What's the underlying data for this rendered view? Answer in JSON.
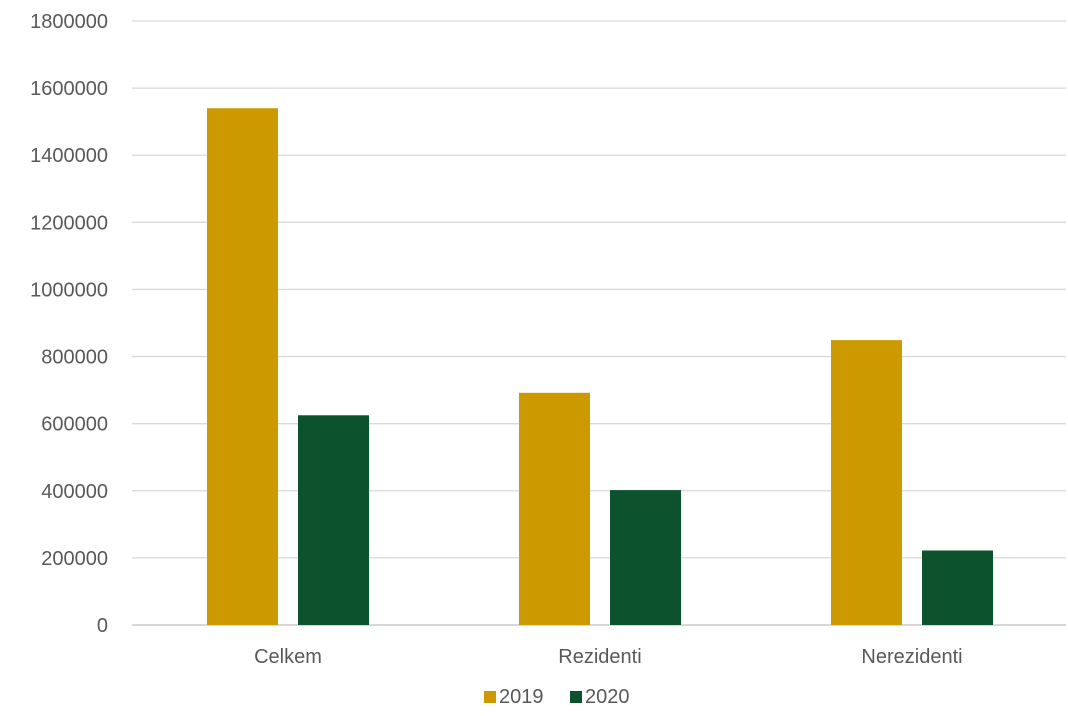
{
  "chart_data": {
    "type": "bar",
    "categories": [
      "Celkem",
      "Rezidenti",
      "Nerezidenti"
    ],
    "series": [
      {
        "name": "2019",
        "values": [
          1540000,
          692000,
          849000
        ],
        "color": "#cc9900"
      },
      {
        "name": "2020",
        "values": [
          625000,
          402000,
          222000
        ],
        "color": "#0b522d"
      }
    ],
    "ylim": [
      0,
      1800000
    ],
    "yticks": [
      0,
      200000,
      400000,
      600000,
      800000,
      1000000,
      1200000,
      1400000,
      1600000,
      1800000
    ],
    "grid": true,
    "legend": "bottom",
    "title": "",
    "xlabel": "",
    "ylabel": ""
  }
}
